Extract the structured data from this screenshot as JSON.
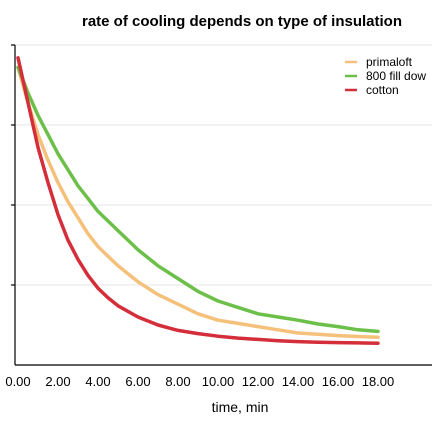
{
  "chart_data": {
    "type": "line",
    "title": "rate of cooling depends on type of insulation",
    "xlabel": "time, min",
    "ylabel": "",
    "xlim": [
      0,
      18
    ],
    "ylim": [
      0,
      100
    ],
    "x_ticks": [
      "0.00",
      "2.00",
      "4.00",
      "6.00",
      "8.00",
      "10.00",
      "12.00",
      "14.00",
      "16.00",
      "18.00"
    ],
    "grid": true,
    "legend_position": "top-right",
    "series": [
      {
        "name": "primaloft",
        "color": "#f5c07a",
        "x": [
          0,
          0.5,
          1,
          1.5,
          2,
          2.5,
          3,
          3.5,
          4,
          4.5,
          5,
          6,
          7,
          8,
          9,
          10,
          11,
          12,
          13,
          14,
          15,
          16,
          17,
          18
        ],
        "y": [
          93,
          82,
          72,
          64,
          57,
          51,
          46,
          41,
          37,
          34,
          31,
          26,
          22,
          19,
          16,
          14,
          13,
          12,
          11,
          10,
          9.6,
          9.2,
          8.9,
          8.7
        ]
      },
      {
        "name": " 800 fill dow",
        "color": "#6cc04a",
        "x": [
          0,
          0.5,
          1,
          1.5,
          2,
          2.5,
          3,
          3.5,
          4,
          4.5,
          5,
          6,
          7,
          8,
          9,
          10,
          11,
          12,
          13,
          14,
          15,
          16,
          17,
          18
        ],
        "y": [
          93,
          85,
          78,
          72,
          66,
          61,
          56,
          52,
          48,
          45,
          42,
          36,
          31,
          27,
          23,
          20,
          18,
          16,
          15,
          14,
          12.8,
          12,
          11,
          10.5
        ]
      },
      {
        "name": "cotton",
        "color": "#d42e3a",
        "x": [
          0,
          0.5,
          1,
          1.5,
          2,
          2.5,
          3,
          3.5,
          4,
          4.5,
          5,
          6,
          7,
          8,
          9,
          10,
          11,
          12,
          13,
          14,
          15,
          16,
          17,
          18
        ],
        "y": [
          96,
          82,
          68,
          57,
          47,
          39,
          33,
          28,
          24,
          21,
          18.5,
          15,
          12.5,
          10.8,
          9.8,
          9,
          8.4,
          8,
          7.6,
          7.3,
          7.1,
          7,
          6.9,
          6.8
        ]
      }
    ]
  }
}
